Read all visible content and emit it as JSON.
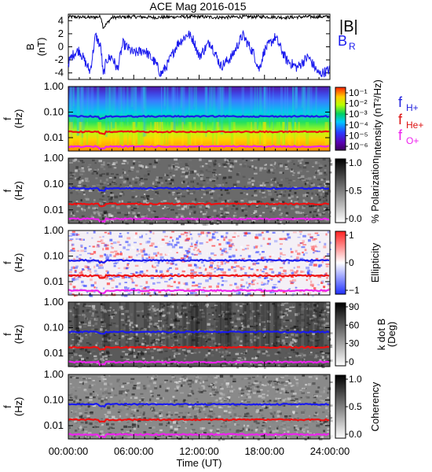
{
  "title": "ACE Mag 2016-015",
  "x_axis": {
    "label": "Time (UT)",
    "ticks": [
      "00:00:00",
      "06:00:00",
      "12:00:00",
      "18:00:00",
      "24:00:00"
    ]
  },
  "legend_b": {
    "b_mag": "|B|",
    "b_r": "B",
    "b_r_sub": "R"
  },
  "legend_freq": [
    {
      "base": "f",
      "sub": "H+",
      "color": "#2222dd"
    },
    {
      "base": "f",
      "sub": "He+",
      "color": "#dd1111"
    },
    {
      "base": "f",
      "sub": "O+",
      "color": "#ee22ee"
    }
  ],
  "colors": {
    "babs": "#000000",
    "br": "#1a1aee",
    "fH": "#1a1aee",
    "fHe": "#ee1111",
    "fO": "#ee22ee"
  },
  "chart_data": [
    {
      "type": "line",
      "panel": "B",
      "ylabel": "B",
      "yunit": "(nT)",
      "yticks": [
        "4",
        "2",
        "0",
        "-2",
        "-4"
      ],
      "ylim": [
        -5,
        5
      ],
      "xlim": [
        0,
        24
      ],
      "series": [
        {
          "name": "|B|",
          "x": [
            0,
            2,
            3,
            3.2,
            4,
            6,
            8,
            10,
            12,
            14,
            16,
            18,
            20,
            22,
            24
          ],
          "values": [
            4.6,
            4.5,
            4.6,
            2.9,
            4.5,
            4.6,
            4.5,
            4.6,
            4.6,
            4.5,
            4.6,
            4.6,
            4.5,
            4.6,
            4.6
          ]
        },
        {
          "name": "B_R",
          "x": [
            0,
            0.5,
            1,
            1.5,
            2,
            2.5,
            3,
            3.2,
            3.5,
            4,
            4.5,
            5,
            6,
            7,
            8,
            8.5,
            9,
            10,
            11,
            11.5,
            12,
            13,
            14,
            15,
            16,
            17,
            17.5,
            18,
            19,
            20,
            21,
            22,
            23,
            24
          ],
          "values": [
            -2.5,
            -1,
            -0.5,
            -2.2,
            -3.8,
            1.8,
            -0.2,
            -4.5,
            -2,
            -1.5,
            -3.5,
            0.5,
            -1,
            -0.5,
            -2.5,
            -4.2,
            -3,
            0.4,
            2,
            1,
            -1.5,
            0.8,
            -3,
            -1.5,
            1.8,
            -1,
            -3.5,
            -0.5,
            1.5,
            -2,
            -3.2,
            -1.5,
            -4.2,
            -3.5
          ]
        }
      ]
    },
    {
      "type": "heatmap",
      "panel": "Intensity",
      "ylabel": "f",
      "yunit": "(Hz)",
      "yticks": [
        "1.00",
        "0.10",
        "0.01"
      ],
      "colorbar_label": "Intensity (nT²/Hz)",
      "colorbar_ticks": [
        "10⁻¹",
        "10⁻²",
        "10⁻³",
        "10⁻⁴",
        "10⁻⁵",
        "10⁻⁶"
      ]
    },
    {
      "type": "heatmap",
      "panel": "Polarization",
      "ylabel": "f",
      "yunit": "(Hz)",
      "yticks": [
        "1.00",
        "0.10",
        "0.01"
      ],
      "colorbar_label": "% Polarization",
      "colorbar_ticks": [
        "1.0",
        "0.5",
        "0.0"
      ]
    },
    {
      "type": "heatmap",
      "panel": "Ellipticity",
      "ylabel": "f",
      "yunit": "(Hz)",
      "yticks": [
        "1.00",
        "0.10",
        "0.01"
      ],
      "colorbar_label": "Ellipticity",
      "colorbar_ticks": [
        "1",
        "0",
        "−1"
      ]
    },
    {
      "type": "heatmap",
      "panel": "k dot B",
      "ylabel": "f",
      "yunit": "(Hz)",
      "yticks": [
        "1.00",
        "0.10",
        "0.01"
      ],
      "colorbar_label": "k dot B",
      "colorbar_unit": "(Deg)",
      "colorbar_ticks": [
        "90",
        "60",
        "30",
        "0"
      ]
    },
    {
      "type": "heatmap",
      "panel": "Coherency",
      "ylabel": "f",
      "yunit": "(Hz)",
      "yticks": [
        "1.00",
        "0.10",
        "0.01"
      ],
      "colorbar_label": "Coherency",
      "colorbar_ticks": [
        "1.0",
        "0.5",
        "0.0"
      ]
    }
  ],
  "cyclotron_lines": {
    "H+": {
      "freq_hz": 0.068
    },
    "He+": {
      "freq_hz": 0.017
    },
    "O+": {
      "freq_hz": 0.0045
    }
  }
}
